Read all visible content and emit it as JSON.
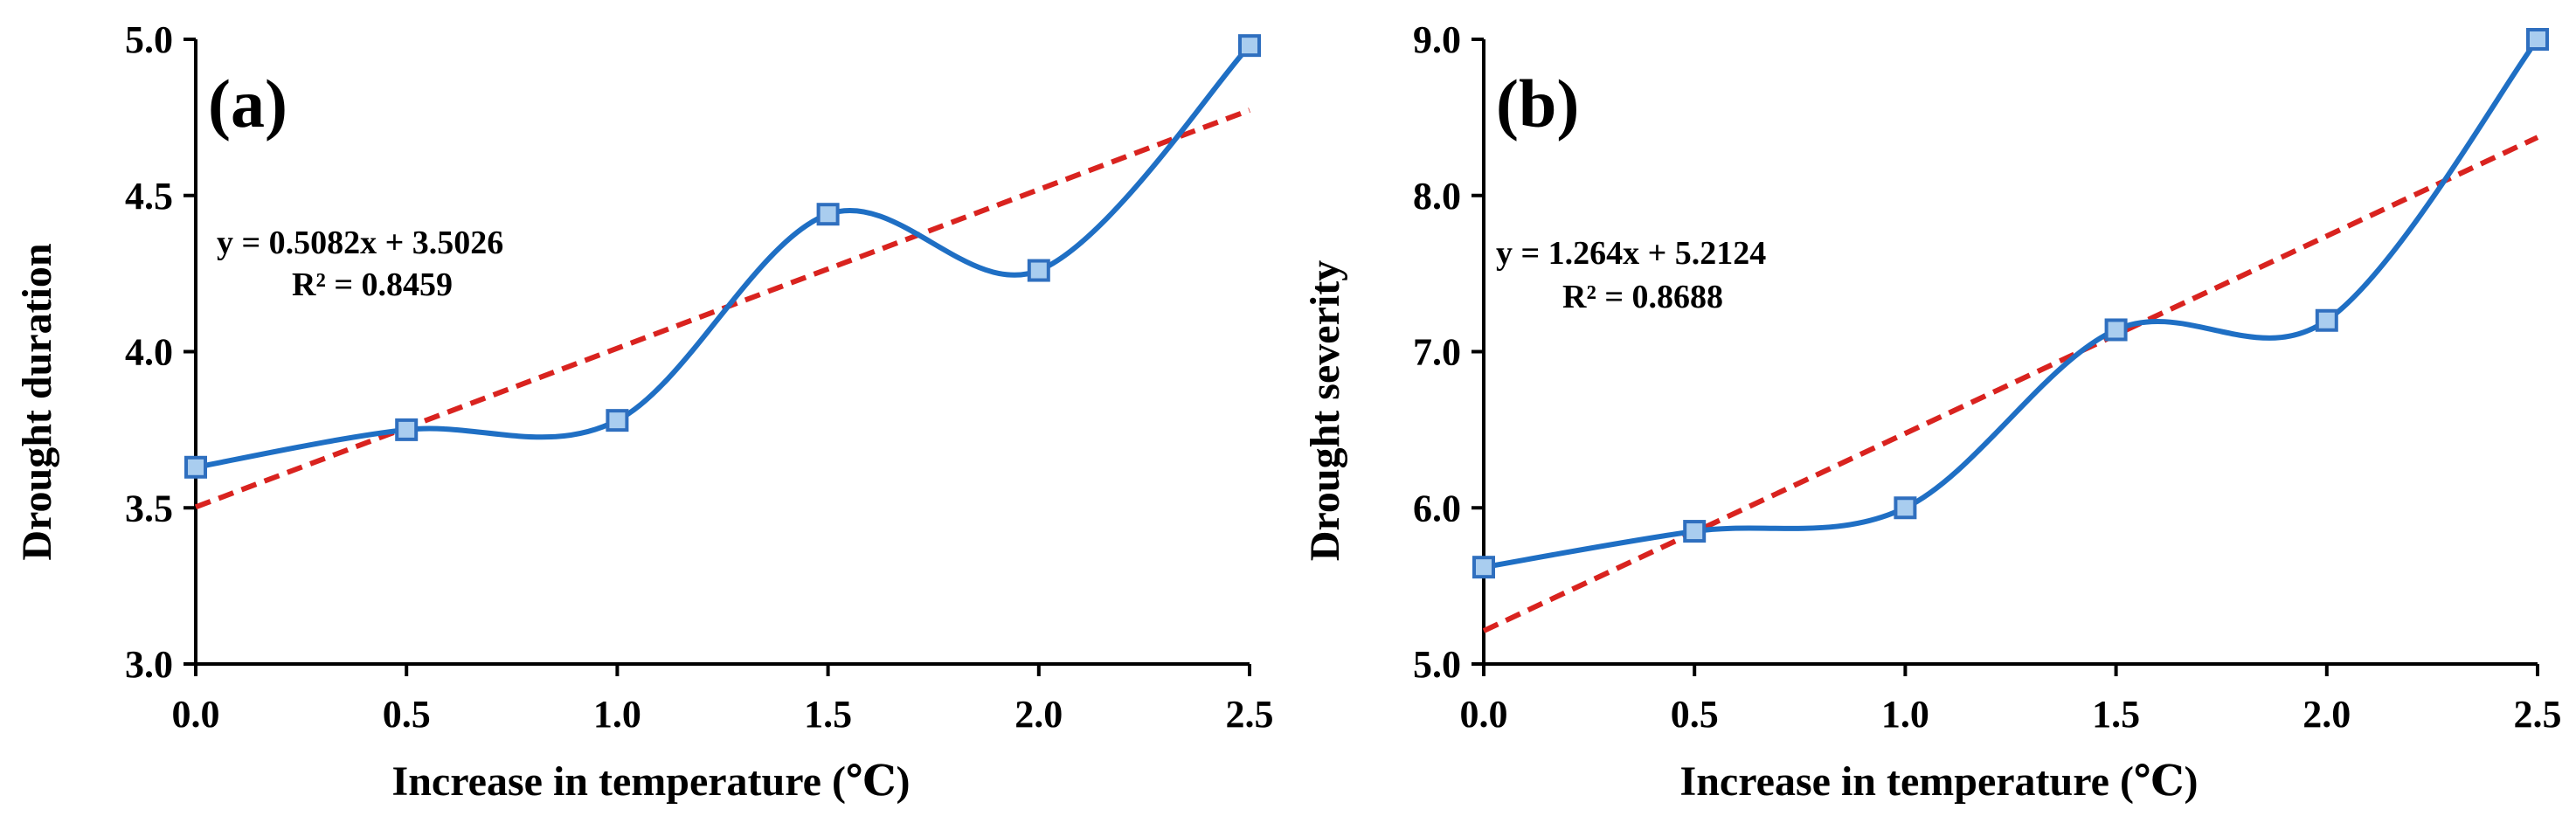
{
  "chart_data": [
    {
      "type": "line",
      "panel_label": "(a)",
      "xlabel": "Increase in temperature (℃)",
      "ylabel": "Drought duration",
      "xlim": [
        0,
        2.5
      ],
      "ylim": [
        3.0,
        5.0
      ],
      "x_ticks": [
        "0.0",
        "0.5",
        "1.0",
        "1.5",
        "2.0",
        "2.5"
      ],
      "y_ticks": [
        "3.0",
        "3.5",
        "4.0",
        "4.5",
        "5.0"
      ],
      "series": [
        {
          "name": "Drought duration",
          "x": [
            0.0,
            0.5,
            1.0,
            1.5,
            2.0,
            2.5
          ],
          "values": [
            3.63,
            3.75,
            3.78,
            4.44,
            4.26,
            4.98
          ]
        }
      ],
      "trendline": {
        "slope": 0.5082,
        "intercept": 3.5026
      },
      "equation": "y = 0.5082x + 3.5026",
      "r_squared": "R² = 0.8459"
    },
    {
      "type": "line",
      "panel_label": "(b)",
      "xlabel": "Increase in temperature (℃)",
      "ylabel": "Drought severity",
      "xlim": [
        0,
        2.5
      ],
      "ylim": [
        5.0,
        9.0
      ],
      "x_ticks": [
        "0.0",
        "0.5",
        "1.0",
        "1.5",
        "2.0",
        "2.5"
      ],
      "y_ticks": [
        "5.0",
        "6.0",
        "7.0",
        "8.0",
        "9.0"
      ],
      "series": [
        {
          "name": "Drought severity",
          "x": [
            0.0,
            0.5,
            1.0,
            1.5,
            2.0,
            2.5
          ],
          "values": [
            5.62,
            5.85,
            6.0,
            7.14,
            7.2,
            9.0
          ]
        }
      ],
      "trendline": {
        "slope": 1.264,
        "intercept": 5.2124
      },
      "equation": "y = 1.264x + 5.2124",
      "r_squared": "R² = 0.8688"
    }
  ],
  "colors": {
    "curve": "#1f6fc4",
    "marker_fill": "#a9cdef",
    "marker_stroke": "#2f6fbf",
    "trend": "#d9231f"
  }
}
